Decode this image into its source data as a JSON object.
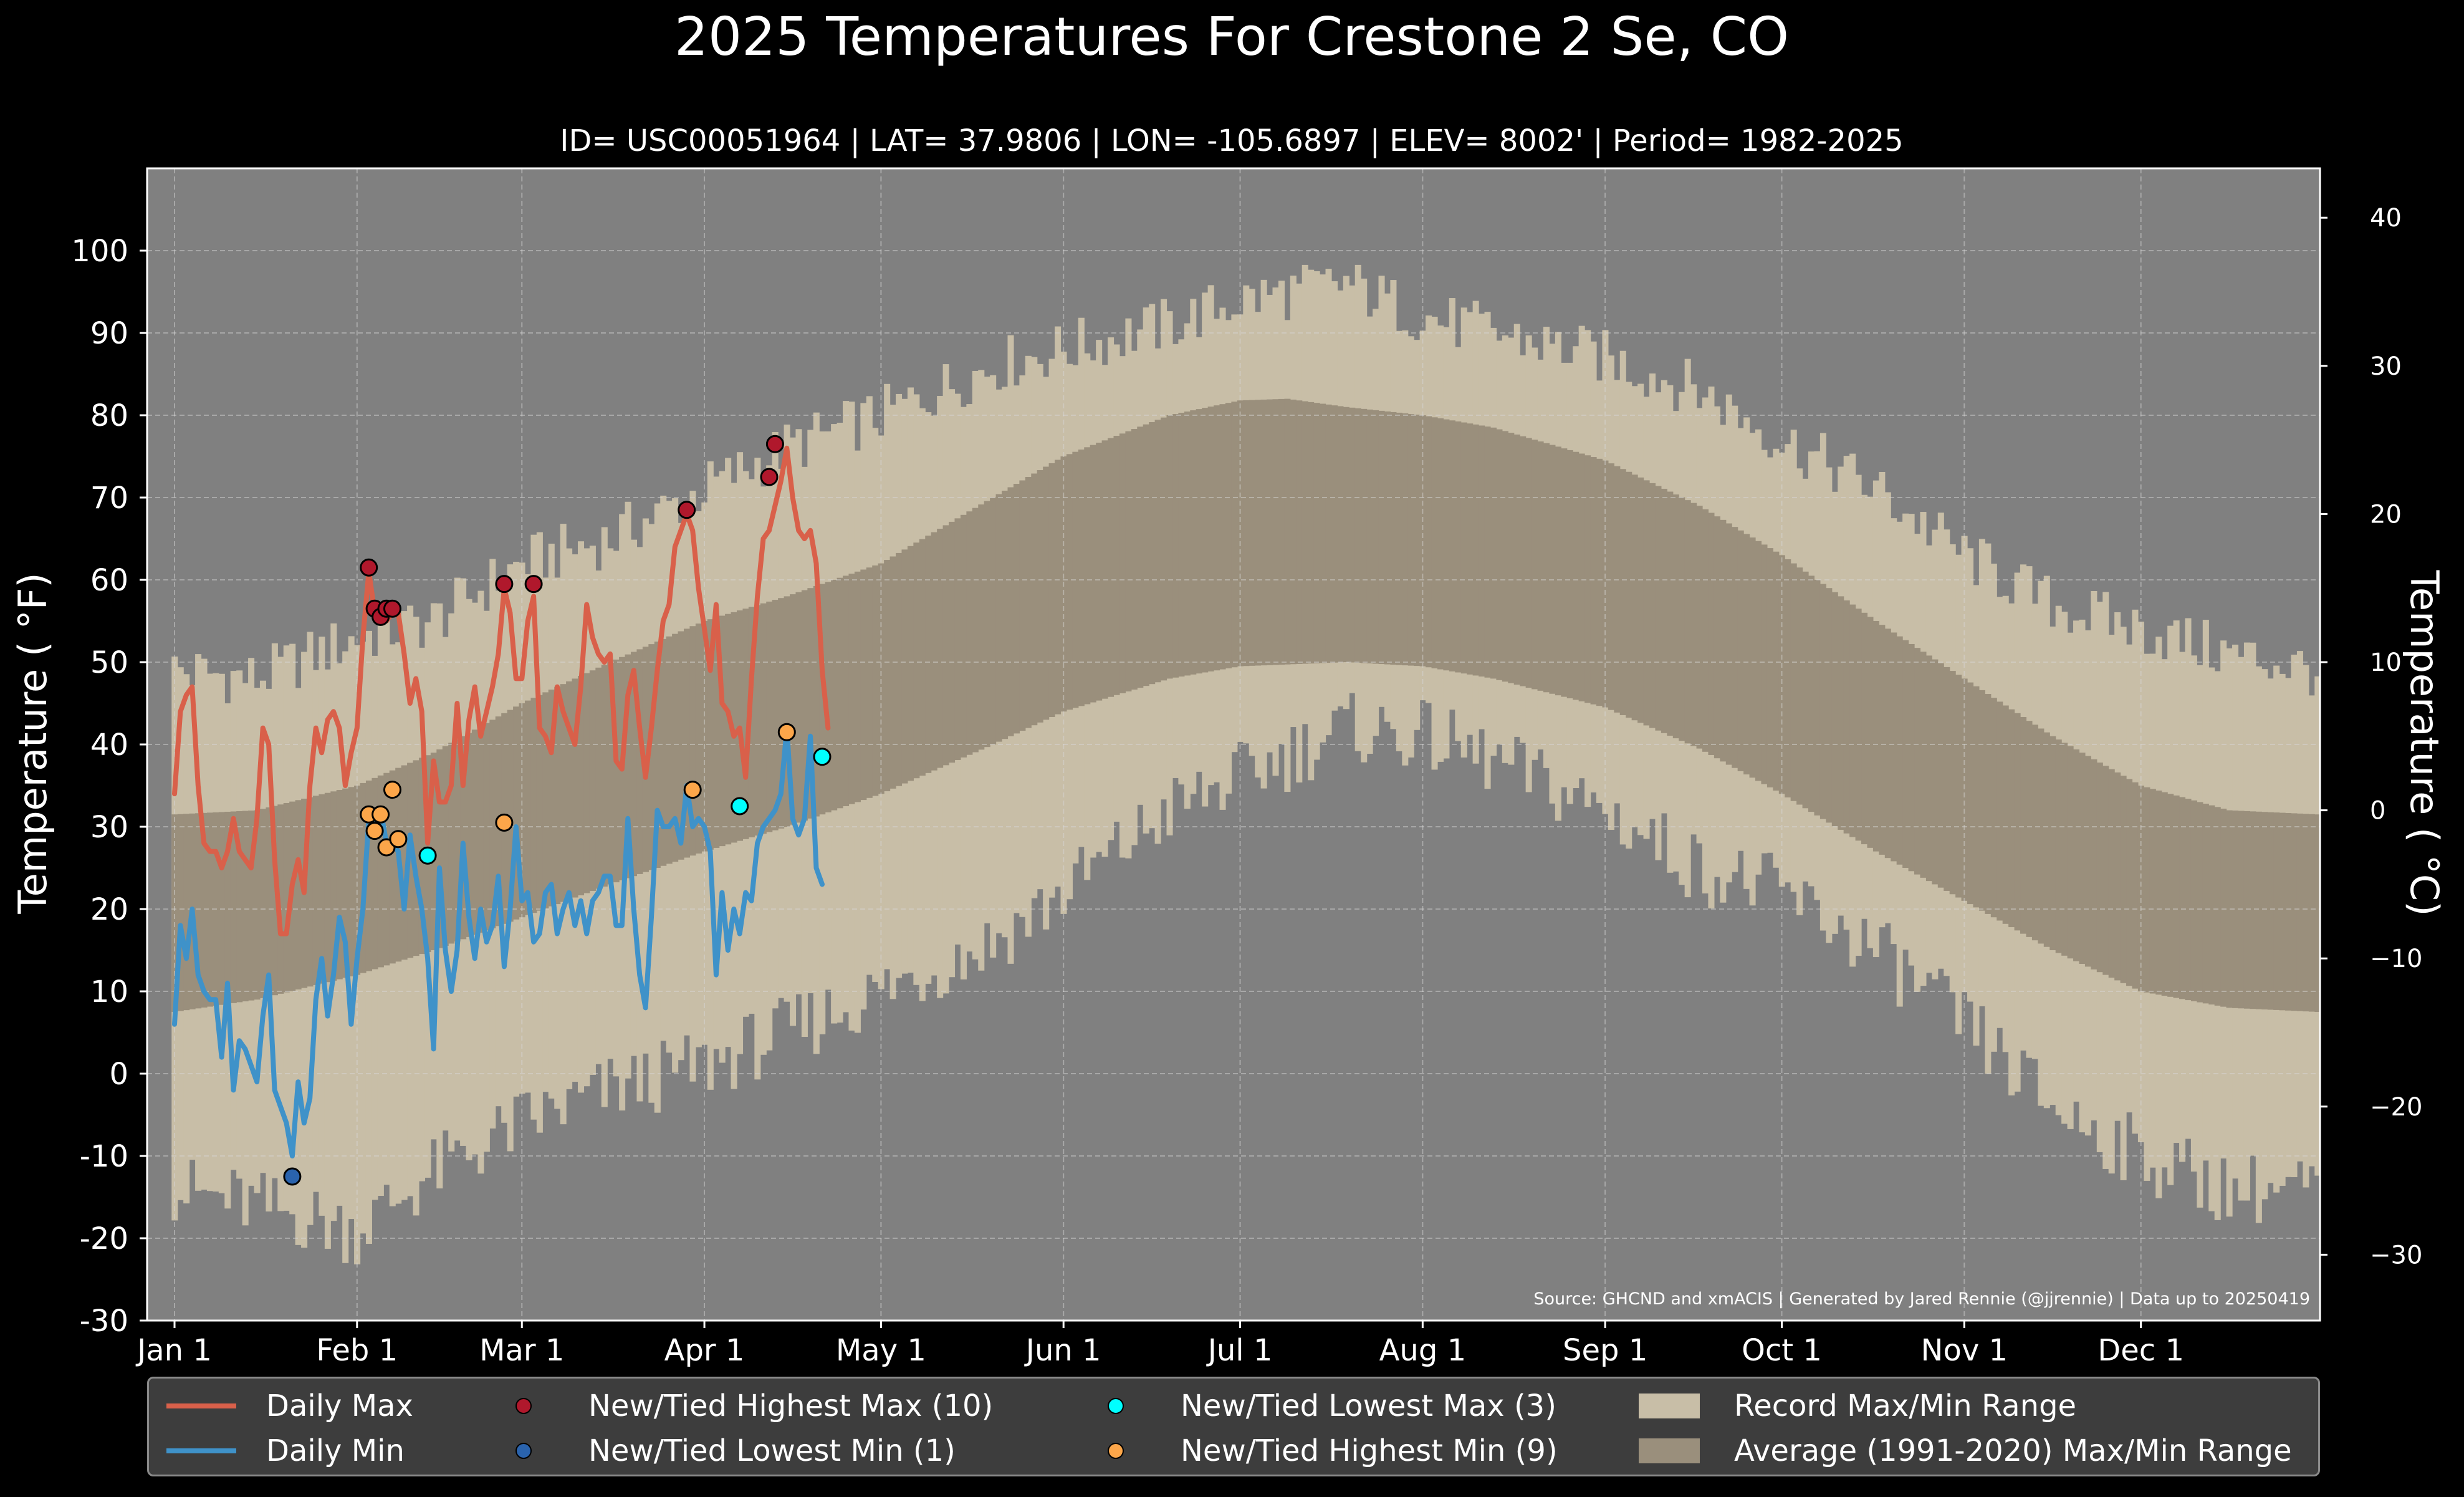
{
  "page": {
    "title": "2025 Temperatures For Crestone 2 Se, CO",
    "subtitle": "ID= USC00051964 | LAT= 37.9806 | LON= -105.6897 | ELEV= 8002' | Period= 1982-2025",
    "source_note": "Source: GHCND and xmACIS | Generated by Jared Rennie (@jjrennie) | Data up to 20250419"
  },
  "colors": {
    "background": "#000000",
    "plot_bg": "#808080",
    "record_range": "#c8bea7",
    "normal_range": "#9a8f7c",
    "daily_max": "#d9604a",
    "daily_min": "#3f92c9",
    "new_high_max": "#b0182c",
    "new_low_min": "#2a63ad",
    "new_low_max": "#00ffff",
    "new_high_min": "#fca64a"
  },
  "legend": {
    "daily_max": "Daily Max",
    "daily_min": "Daily Min",
    "new_high_max": "New/Tied Highest Max (10)",
    "new_low_min": "New/Tied Lowest Min (1)",
    "new_low_max": "New/Tied Lowest Max (3)",
    "new_high_min": "New/Tied Highest Min (9)",
    "record_range": "Record Max/Min Range",
    "normal_range": "Average (1991-2020) Max/Min Range"
  },
  "chart_data": {
    "type": "line",
    "title": "2025 Temperatures For Crestone 2 Se, CO",
    "xlabel": "",
    "ylabel": "Temperature ($^\\circ$F)",
    "ylabel_display": "Temperature ( °F)",
    "ylabel_right": "Temperature ( °C)",
    "grid": true,
    "legend_position": "bottom",
    "xlim": [
      1,
      365
    ],
    "ylim": [
      -30,
      110
    ],
    "ylim_right_c": [
      -34.44,
      43.33
    ],
    "x_ticks": [
      {
        "label": "Jan 1",
        "day": 1
      },
      {
        "label": "Feb 1",
        "day": 32
      },
      {
        "label": "Mar 1",
        "day": 60
      },
      {
        "label": "Apr 1",
        "day": 91
      },
      {
        "label": "May 1",
        "day": 121
      },
      {
        "label": "Jun 1",
        "day": 152
      },
      {
        "label": "Jul 1",
        "day": 182
      },
      {
        "label": "Aug 1",
        "day": 213
      },
      {
        "label": "Sep 1",
        "day": 244
      },
      {
        "label": "Oct 1",
        "day": 274
      },
      {
        "label": "Nov 1",
        "day": 305
      },
      {
        "label": "Dec 1",
        "day": 335
      }
    ],
    "y_ticks_f": [
      -30,
      -20,
      -10,
      0,
      10,
      20,
      30,
      40,
      50,
      60,
      70,
      80,
      90,
      100
    ],
    "y_ticks_c": [
      -30,
      -20,
      -10,
      0,
      10,
      20,
      30,
      40
    ],
    "record_max_anchors": {
      "day": [
        1,
        15,
        32,
        45,
        60,
        75,
        91,
        105,
        121,
        140,
        152,
        170,
        182,
        200,
        213,
        225,
        244,
        260,
        274,
        290,
        305,
        320,
        335,
        350,
        365
      ],
      "value": [
        49,
        48,
        53,
        55,
        62,
        65,
        71,
        76,
        80,
        86,
        88,
        91,
        94,
        96,
        92,
        90,
        87,
        83,
        77,
        71,
        63,
        57,
        54,
        51,
        49
      ]
    },
    "record_min_anchors": {
      "day": [
        1,
        15,
        32,
        45,
        60,
        75,
        91,
        105,
        121,
        140,
        152,
        170,
        182,
        200,
        213,
        225,
        244,
        260,
        274,
        290,
        305,
        320,
        335,
        350,
        365
      ],
      "value": [
        -14,
        -16,
        -19,
        -12,
        -6,
        -2,
        1,
        5,
        10,
        16,
        22,
        32,
        36,
        42,
        41,
        38,
        32,
        25,
        22,
        15,
        6,
        -4,
        -10,
        -14,
        -14
      ]
    },
    "normal_max_anchors": {
      "day": [
        1,
        15,
        32,
        45,
        60,
        75,
        91,
        105,
        121,
        140,
        152,
        170,
        182,
        190,
        200,
        213,
        225,
        244,
        260,
        274,
        290,
        305,
        320,
        335,
        350,
        365
      ],
      "value": [
        31.5,
        32,
        35,
        39,
        45,
        50,
        55,
        58,
        62,
        70,
        75,
        80,
        81.8,
        82,
        81,
        80,
        78.5,
        74.5,
        69,
        63,
        55,
        48,
        41,
        35,
        32,
        31.5
      ]
    },
    "normal_min_anchors": {
      "day": [
        1,
        15,
        32,
        45,
        60,
        75,
        91,
        105,
        121,
        140,
        152,
        170,
        182,
        200,
        213,
        225,
        244,
        260,
        274,
        290,
        305,
        320,
        335,
        350,
        365
      ],
      "value": [
        7.5,
        9,
        12,
        15,
        19,
        23,
        27,
        30,
        34,
        40,
        44,
        48,
        49.5,
        50,
        49.5,
        48,
        44.5,
        39.5,
        34,
        27,
        21,
        15,
        10,
        8,
        7.5
      ]
    },
    "series": [
      {
        "name": "Daily Max",
        "start_day": 1,
        "values": [
          34,
          44,
          46,
          47,
          35,
          28,
          27,
          27,
          25,
          27,
          31,
          27,
          26,
          25,
          31,
          42,
          40,
          26,
          17,
          17,
          23,
          26,
          22,
          35,
          42,
          39,
          43,
          44,
          42,
          35,
          39,
          42,
          53,
          61,
          56,
          56,
          55,
          56,
          56,
          51,
          45,
          48,
          44,
          28,
          38,
          33,
          33,
          35,
          45,
          35,
          43,
          47,
          41,
          44,
          47,
          51,
          59,
          56,
          48,
          48,
          55,
          58,
          42,
          41,
          39,
          47,
          44,
          42,
          40,
          47,
          57,
          53,
          51,
          50,
          51,
          38,
          37,
          46,
          49,
          42,
          36,
          42,
          49,
          55,
          57,
          64,
          66,
          68,
          66,
          59,
          54,
          49,
          57,
          45,
          44,
          41,
          42,
          36,
          48,
          58,
          65,
          66,
          69,
          72,
          76,
          70,
          66,
          65,
          66,
          62,
          49,
          42
        ]
      },
      {
        "name": "Daily Min",
        "start_day": 1,
        "values": [
          6,
          18,
          14,
          20,
          12,
          10,
          9,
          9,
          2,
          11,
          -2,
          4,
          3,
          1,
          -1,
          7,
          12,
          -2,
          -4,
          -6,
          -10,
          -1,
          -6,
          -3,
          9,
          14,
          7,
          12,
          19,
          16,
          6,
          14,
          20,
          31,
          30,
          32,
          28,
          28,
          27,
          20,
          29,
          24,
          20,
          14,
          3,
          25,
          15,
          10,
          15,
          28,
          19,
          14,
          20,
          16,
          18,
          24,
          13,
          20,
          30,
          21,
          22,
          16,
          17,
          22,
          23,
          17,
          20,
          22,
          18,
          21,
          17,
          21,
          22,
          24,
          24,
          18,
          18,
          31,
          20,
          12,
          8,
          19,
          32,
          30,
          30,
          31,
          28,
          35,
          30,
          31,
          30,
          27,
          12,
          22,
          15,
          20,
          17,
          22,
          21,
          28,
          30,
          31,
          32,
          34,
          42,
          31,
          29,
          31,
          41,
          25,
          23
        ]
      }
    ],
    "markers": {
      "new_high_max": [
        [
          34,
          61.5
        ],
        [
          35,
          56.5
        ],
        [
          36,
          55.5
        ],
        [
          37,
          56.5
        ],
        [
          38,
          56.5
        ],
        [
          57,
          59.5
        ],
        [
          62,
          59.5
        ],
        [
          88,
          68.5
        ],
        [
          102,
          72.5
        ],
        [
          103,
          76.5
        ]
      ],
      "new_low_min": [
        [
          21,
          -12.5
        ]
      ],
      "new_low_max": [
        [
          44,
          26.5
        ],
        [
          97,
          32.5
        ],
        [
          111,
          38.5
        ]
      ],
      "new_high_min": [
        [
          34,
          31.5
        ],
        [
          35,
          29.5
        ],
        [
          36,
          31.5
        ],
        [
          37,
          27.5
        ],
        [
          38,
          34.5
        ],
        [
          39,
          28.5
        ],
        [
          57,
          30.5
        ],
        [
          89,
          34.5
        ],
        [
          105,
          41.5
        ]
      ]
    }
  }
}
